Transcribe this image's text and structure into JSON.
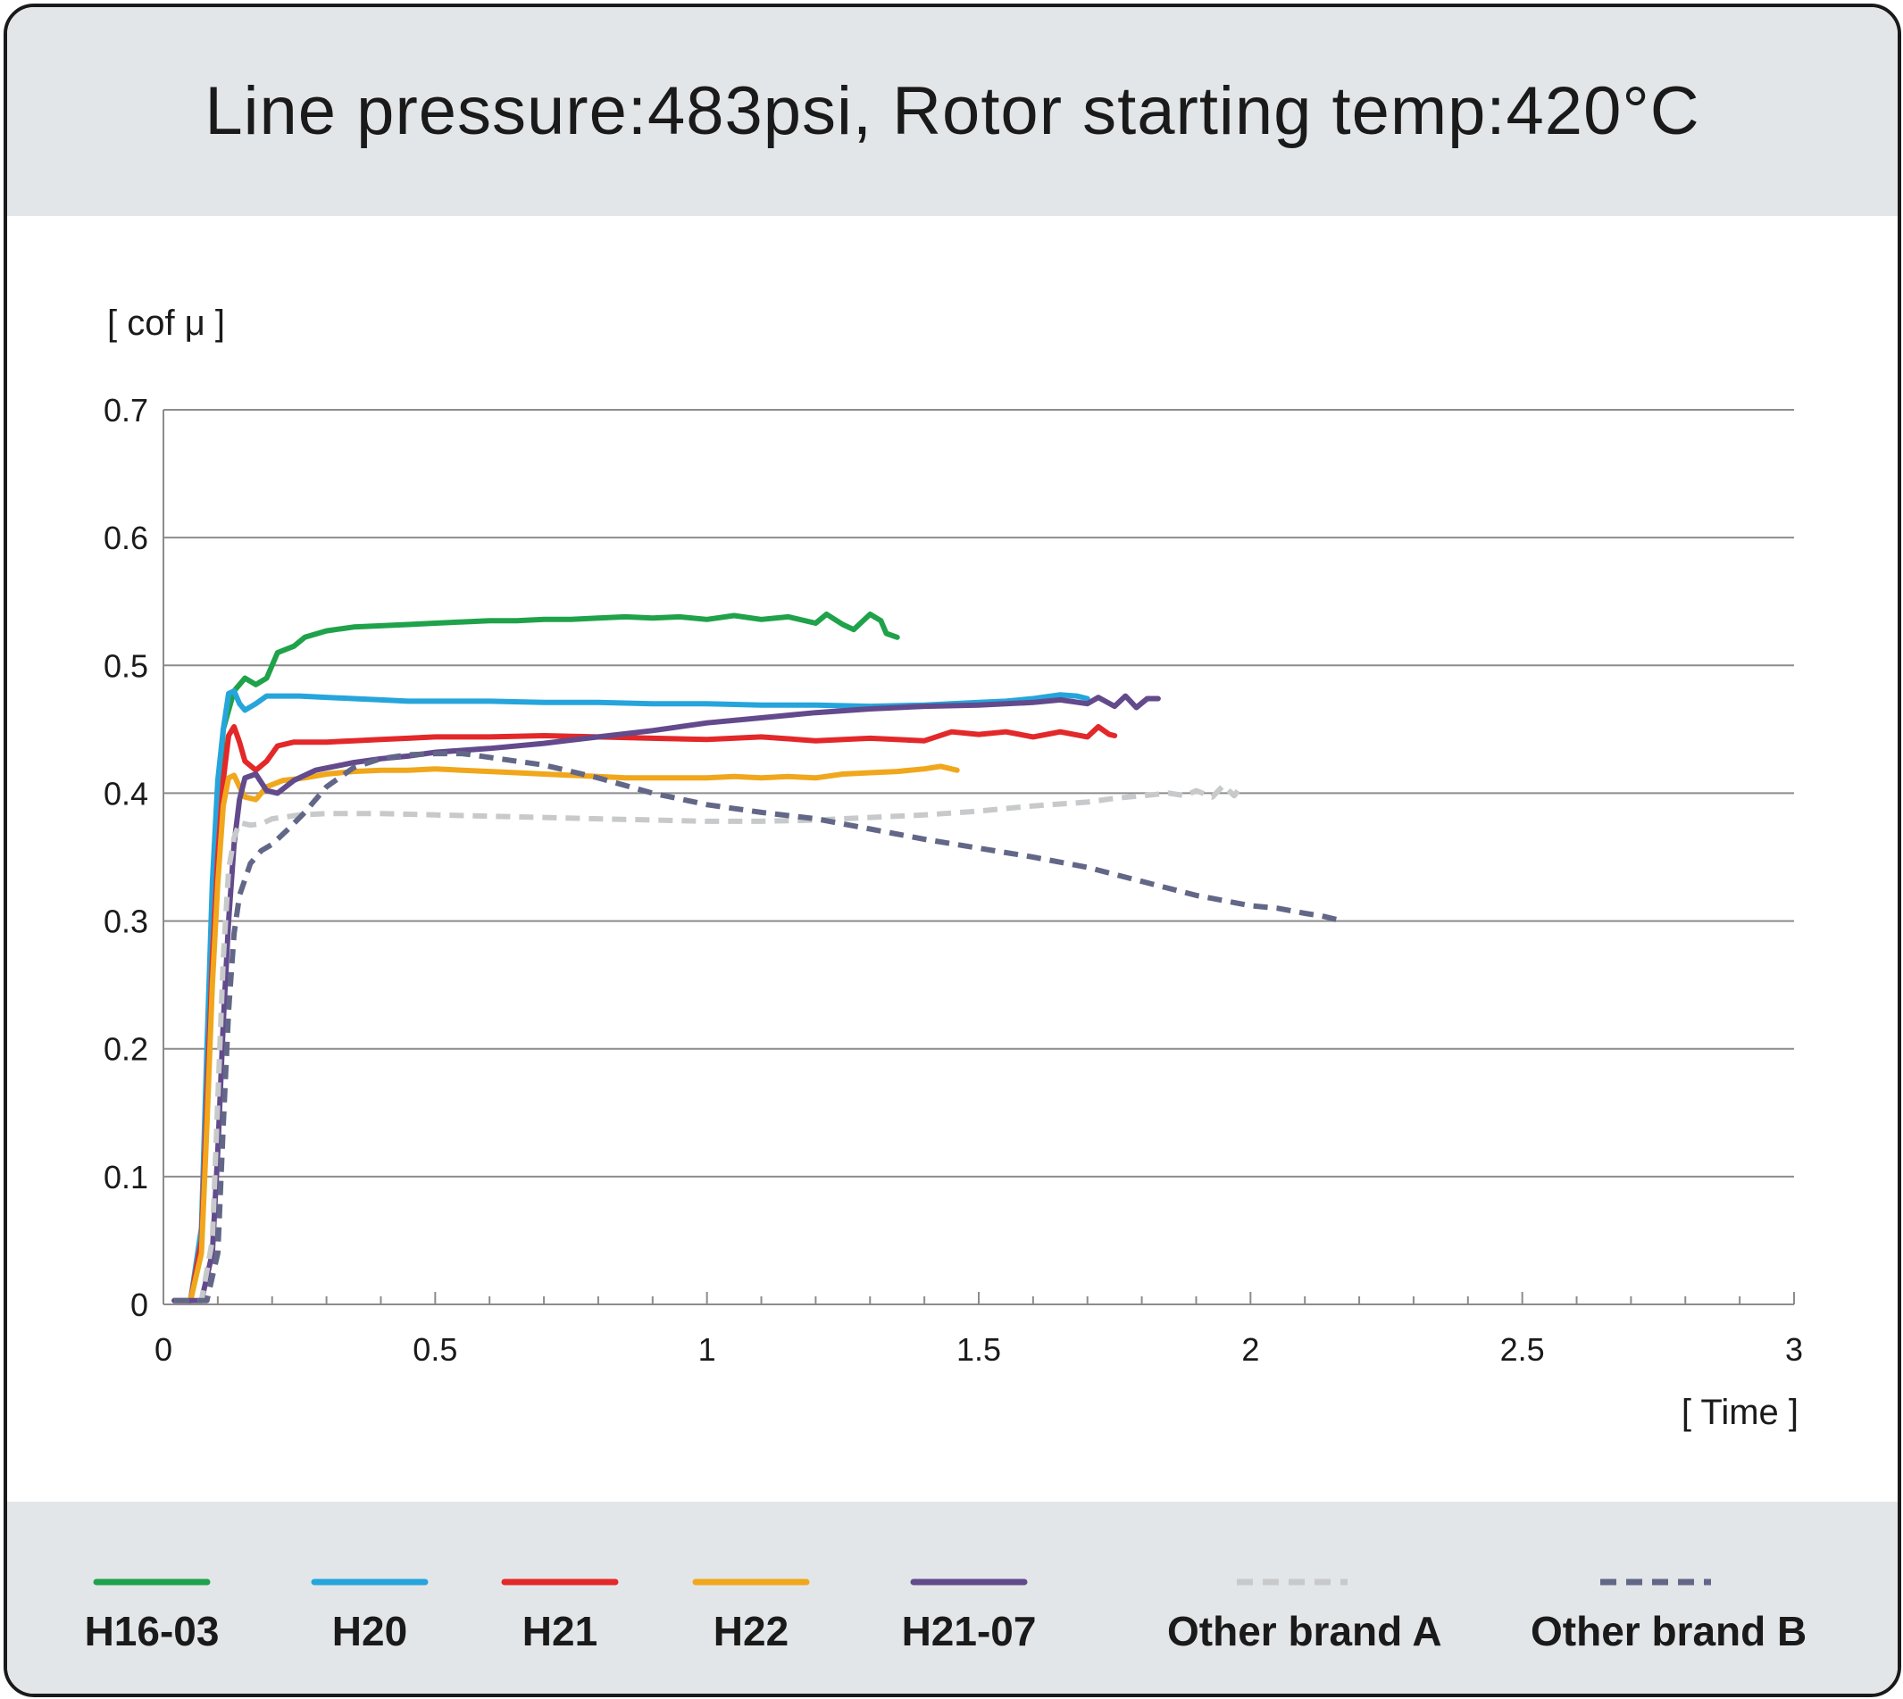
{
  "title": "Line pressure:483psi, Rotor starting temp:420°C",
  "chart_data": {
    "type": "line",
    "ylabel": "[ cof μ ]",
    "xlabel": "[ Time ]",
    "xlim": [
      0,
      3
    ],
    "ylim": [
      0,
      0.7
    ],
    "x_ticks": [
      0,
      0.5,
      1,
      1.5,
      2,
      2.5,
      3
    ],
    "x_tick_labels": [
      "0",
      "0.5",
      "1",
      "1.5",
      "2",
      "2.5",
      "3"
    ],
    "y_ticks": [
      0,
      0.1,
      0.2,
      0.3,
      0.4,
      0.5,
      0.6,
      0.7
    ],
    "y_tick_labels": [
      "0",
      "0.1",
      "0.2",
      "0.3",
      "0.4",
      "0.5",
      "0.6",
      "0.7"
    ],
    "grid": "horizontal",
    "legend_position": "bottom",
    "series": [
      {
        "name": "H16-03",
        "color": "#1fa24a",
        "dashed": false,
        "points": [
          [
            0.02,
            0.003
          ],
          [
            0.05,
            0.003
          ],
          [
            0.07,
            0.05
          ],
          [
            0.08,
            0.15
          ],
          [
            0.09,
            0.28
          ],
          [
            0.1,
            0.38
          ],
          [
            0.11,
            0.45
          ],
          [
            0.13,
            0.48
          ],
          [
            0.15,
            0.49
          ],
          [
            0.17,
            0.485
          ],
          [
            0.19,
            0.49
          ],
          [
            0.21,
            0.51
          ],
          [
            0.24,
            0.515
          ],
          [
            0.26,
            0.522
          ],
          [
            0.3,
            0.527
          ],
          [
            0.35,
            0.53
          ],
          [
            0.4,
            0.531
          ],
          [
            0.45,
            0.532
          ],
          [
            0.5,
            0.533
          ],
          [
            0.55,
            0.534
          ],
          [
            0.6,
            0.535
          ],
          [
            0.65,
            0.535
          ],
          [
            0.7,
            0.536
          ],
          [
            0.75,
            0.536
          ],
          [
            0.8,
            0.537
          ],
          [
            0.85,
            0.538
          ],
          [
            0.9,
            0.537
          ],
          [
            0.95,
            0.538
          ],
          [
            1.0,
            0.536
          ],
          [
            1.05,
            0.539
          ],
          [
            1.1,
            0.536
          ],
          [
            1.15,
            0.538
          ],
          [
            1.2,
            0.533
          ],
          [
            1.22,
            0.54
          ],
          [
            1.25,
            0.532
          ],
          [
            1.27,
            0.528
          ],
          [
            1.3,
            0.54
          ],
          [
            1.32,
            0.535
          ],
          [
            1.33,
            0.525
          ],
          [
            1.35,
            0.522
          ]
        ]
      },
      {
        "name": "H20",
        "color": "#26a5dc",
        "dashed": false,
        "points": [
          [
            0.02,
            0.003
          ],
          [
            0.05,
            0.003
          ],
          [
            0.07,
            0.06
          ],
          [
            0.08,
            0.2
          ],
          [
            0.09,
            0.33
          ],
          [
            0.1,
            0.41
          ],
          [
            0.11,
            0.45
          ],
          [
            0.12,
            0.478
          ],
          [
            0.13,
            0.48
          ],
          [
            0.14,
            0.47
          ],
          [
            0.15,
            0.465
          ],
          [
            0.17,
            0.47
          ],
          [
            0.19,
            0.476
          ],
          [
            0.25,
            0.476
          ],
          [
            0.3,
            0.475
          ],
          [
            0.35,
            0.474
          ],
          [
            0.4,
            0.473
          ],
          [
            0.45,
            0.472
          ],
          [
            0.5,
            0.472
          ],
          [
            0.6,
            0.472
          ],
          [
            0.7,
            0.471
          ],
          [
            0.8,
            0.471
          ],
          [
            0.9,
            0.47
          ],
          [
            1.0,
            0.47
          ],
          [
            1.1,
            0.469
          ],
          [
            1.2,
            0.469
          ],
          [
            1.3,
            0.468
          ],
          [
            1.4,
            0.469
          ],
          [
            1.5,
            0.471
          ],
          [
            1.55,
            0.472
          ],
          [
            1.6,
            0.474
          ],
          [
            1.65,
            0.477
          ],
          [
            1.68,
            0.476
          ],
          [
            1.7,
            0.474
          ]
        ]
      },
      {
        "name": "H21",
        "color": "#e3282a",
        "dashed": false,
        "points": [
          [
            0.02,
            0.003
          ],
          [
            0.05,
            0.003
          ],
          [
            0.07,
            0.05
          ],
          [
            0.08,
            0.16
          ],
          [
            0.09,
            0.27
          ],
          [
            0.1,
            0.35
          ],
          [
            0.11,
            0.41
          ],
          [
            0.12,
            0.445
          ],
          [
            0.13,
            0.452
          ],
          [
            0.14,
            0.44
          ],
          [
            0.15,
            0.425
          ],
          [
            0.17,
            0.418
          ],
          [
            0.19,
            0.425
          ],
          [
            0.21,
            0.437
          ],
          [
            0.24,
            0.44
          ],
          [
            0.3,
            0.44
          ],
          [
            0.35,
            0.441
          ],
          [
            0.4,
            0.442
          ],
          [
            0.45,
            0.443
          ],
          [
            0.5,
            0.444
          ],
          [
            0.6,
            0.444
          ],
          [
            0.7,
            0.445
          ],
          [
            0.8,
            0.444
          ],
          [
            0.9,
            0.443
          ],
          [
            1.0,
            0.442
          ],
          [
            1.1,
            0.444
          ],
          [
            1.2,
            0.441
          ],
          [
            1.3,
            0.443
          ],
          [
            1.4,
            0.441
          ],
          [
            1.45,
            0.448
          ],
          [
            1.5,
            0.446
          ],
          [
            1.55,
            0.448
          ],
          [
            1.6,
            0.444
          ],
          [
            1.65,
            0.448
          ],
          [
            1.7,
            0.444
          ],
          [
            1.72,
            0.452
          ],
          [
            1.74,
            0.446
          ],
          [
            1.75,
            0.445
          ]
        ]
      },
      {
        "name": "H22",
        "color": "#f0a71c",
        "dashed": false,
        "points": [
          [
            0.02,
            0.003
          ],
          [
            0.05,
            0.003
          ],
          [
            0.07,
            0.04
          ],
          [
            0.08,
            0.14
          ],
          [
            0.09,
            0.25
          ],
          [
            0.1,
            0.33
          ],
          [
            0.11,
            0.39
          ],
          [
            0.12,
            0.412
          ],
          [
            0.13,
            0.414
          ],
          [
            0.14,
            0.405
          ],
          [
            0.15,
            0.397
          ],
          [
            0.17,
            0.395
          ],
          [
            0.19,
            0.405
          ],
          [
            0.22,
            0.41
          ],
          [
            0.26,
            0.412
          ],
          [
            0.3,
            0.415
          ],
          [
            0.35,
            0.417
          ],
          [
            0.4,
            0.418
          ],
          [
            0.45,
            0.418
          ],
          [
            0.5,
            0.419
          ],
          [
            0.55,
            0.418
          ],
          [
            0.6,
            0.417
          ],
          [
            0.65,
            0.416
          ],
          [
            0.7,
            0.415
          ],
          [
            0.75,
            0.414
          ],
          [
            0.8,
            0.413
          ],
          [
            0.85,
            0.412
          ],
          [
            0.9,
            0.412
          ],
          [
            0.95,
            0.412
          ],
          [
            1.0,
            0.412
          ],
          [
            1.05,
            0.413
          ],
          [
            1.1,
            0.412
          ],
          [
            1.15,
            0.413
          ],
          [
            1.2,
            0.412
          ],
          [
            1.25,
            0.415
          ],
          [
            1.3,
            0.416
          ],
          [
            1.35,
            0.417
          ],
          [
            1.4,
            0.419
          ],
          [
            1.43,
            0.421
          ],
          [
            1.46,
            0.418
          ]
        ]
      },
      {
        "name": "H21-07",
        "color": "#624a8c",
        "dashed": false,
        "points": [
          [
            0.02,
            0.003
          ],
          [
            0.07,
            0.003
          ],
          [
            0.09,
            0.04
          ],
          [
            0.1,
            0.12
          ],
          [
            0.11,
            0.22
          ],
          [
            0.12,
            0.3
          ],
          [
            0.13,
            0.36
          ],
          [
            0.14,
            0.395
          ],
          [
            0.15,
            0.412
          ],
          [
            0.17,
            0.415
          ],
          [
            0.19,
            0.402
          ],
          [
            0.21,
            0.4
          ],
          [
            0.24,
            0.41
          ],
          [
            0.28,
            0.418
          ],
          [
            0.35,
            0.424
          ],
          [
            0.4,
            0.427
          ],
          [
            0.45,
            0.429
          ],
          [
            0.5,
            0.432
          ],
          [
            0.6,
            0.435
          ],
          [
            0.7,
            0.439
          ],
          [
            0.8,
            0.444
          ],
          [
            0.9,
            0.449
          ],
          [
            1.0,
            0.455
          ],
          [
            1.1,
            0.459
          ],
          [
            1.2,
            0.463
          ],
          [
            1.3,
            0.466
          ],
          [
            1.4,
            0.468
          ],
          [
            1.5,
            0.469
          ],
          [
            1.6,
            0.471
          ],
          [
            1.65,
            0.473
          ],
          [
            1.7,
            0.47
          ],
          [
            1.72,
            0.475
          ],
          [
            1.75,
            0.468
          ],
          [
            1.77,
            0.476
          ],
          [
            1.79,
            0.467
          ],
          [
            1.81,
            0.474
          ],
          [
            1.83,
            0.474
          ]
        ]
      },
      {
        "name": "Other brand A",
        "color": "#c7c9cb",
        "dashed": true,
        "points": [
          [
            0.02,
            0.003
          ],
          [
            0.07,
            0.003
          ],
          [
            0.09,
            0.05
          ],
          [
            0.1,
            0.16
          ],
          [
            0.11,
            0.27
          ],
          [
            0.12,
            0.34
          ],
          [
            0.13,
            0.365
          ],
          [
            0.14,
            0.377
          ],
          [
            0.16,
            0.375
          ],
          [
            0.18,
            0.376
          ],
          [
            0.2,
            0.38
          ],
          [
            0.25,
            0.383
          ],
          [
            0.3,
            0.384
          ],
          [
            0.4,
            0.384
          ],
          [
            0.5,
            0.383
          ],
          [
            0.6,
            0.382
          ],
          [
            0.7,
            0.381
          ],
          [
            0.8,
            0.38
          ],
          [
            0.9,
            0.379
          ],
          [
            1.0,
            0.378
          ],
          [
            1.1,
            0.378
          ],
          [
            1.2,
            0.379
          ],
          [
            1.3,
            0.381
          ],
          [
            1.4,
            0.383
          ],
          [
            1.5,
            0.386
          ],
          [
            1.6,
            0.39
          ],
          [
            1.7,
            0.393
          ],
          [
            1.75,
            0.396
          ],
          [
            1.8,
            0.398
          ],
          [
            1.85,
            0.4
          ],
          [
            1.88,
            0.398
          ],
          [
            1.9,
            0.402
          ],
          [
            1.93,
            0.397
          ],
          [
            1.95,
            0.406
          ],
          [
            1.97,
            0.398
          ],
          [
            1.98,
            0.404
          ]
        ]
      },
      {
        "name": "Other brand B",
        "color": "#636787",
        "dashed": true,
        "points": [
          [
            0.02,
            0.003
          ],
          [
            0.08,
            0.003
          ],
          [
            0.1,
            0.04
          ],
          [
            0.11,
            0.14
          ],
          [
            0.12,
            0.23
          ],
          [
            0.13,
            0.29
          ],
          [
            0.14,
            0.32
          ],
          [
            0.16,
            0.345
          ],
          [
            0.18,
            0.355
          ],
          [
            0.2,
            0.36
          ],
          [
            0.23,
            0.372
          ],
          [
            0.26,
            0.385
          ],
          [
            0.3,
            0.405
          ],
          [
            0.35,
            0.42
          ],
          [
            0.4,
            0.427
          ],
          [
            0.45,
            0.43
          ],
          [
            0.5,
            0.431
          ],
          [
            0.55,
            0.431
          ],
          [
            0.6,
            0.428
          ],
          [
            0.7,
            0.422
          ],
          [
            0.8,
            0.412
          ],
          [
            0.9,
            0.4
          ],
          [
            1.0,
            0.391
          ],
          [
            1.1,
            0.385
          ],
          [
            1.2,
            0.38
          ],
          [
            1.3,
            0.372
          ],
          [
            1.4,
            0.364
          ],
          [
            1.5,
            0.357
          ],
          [
            1.6,
            0.35
          ],
          [
            1.7,
            0.342
          ],
          [
            1.8,
            0.331
          ],
          [
            1.9,
            0.32
          ],
          [
            2.0,
            0.312
          ],
          [
            2.05,
            0.31
          ],
          [
            2.1,
            0.306
          ],
          [
            2.13,
            0.304
          ],
          [
            2.15,
            0.302
          ],
          [
            2.17,
            0.3
          ]
        ]
      }
    ]
  }
}
